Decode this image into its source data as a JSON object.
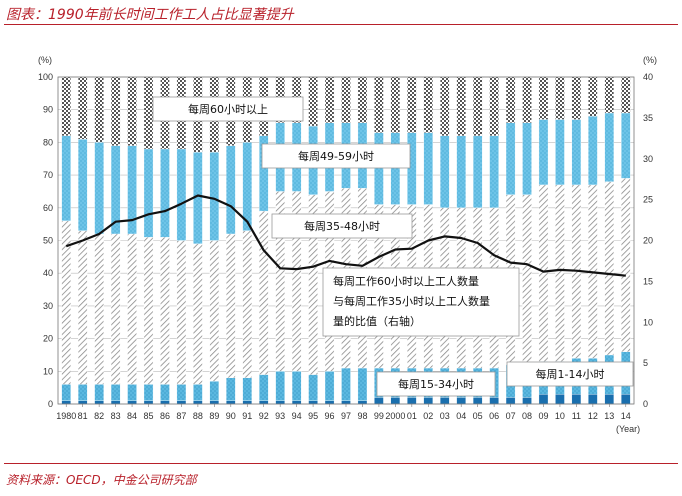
{
  "header": {
    "title": "图表：1990年前长时间工作工人占比显著提升"
  },
  "footer": {
    "source": "资料来源：OECD，中金公司研究部"
  },
  "chart_data": {
    "type": "bar",
    "stacked": true,
    "x_label_unit": "(Year)",
    "y_left_unit": "(%)",
    "y_right_unit": "(%)",
    "y_left_range": [
      0,
      100
    ],
    "y_right_range": [
      0,
      40
    ],
    "y_left_ticks": [
      0,
      10,
      20,
      30,
      40,
      50,
      60,
      70,
      80,
      90,
      100
    ],
    "y_right_ticks": [
      0,
      5,
      10,
      15,
      20,
      25,
      30,
      35,
      40
    ],
    "grid": "horizontal",
    "categories": [
      "1980",
      "81",
      "82",
      "83",
      "84",
      "85",
      "86",
      "87",
      "88",
      "89",
      "90",
      "91",
      "92",
      "93",
      "94",
      "95",
      "96",
      "97",
      "98",
      "99",
      "2000",
      "01",
      "02",
      "03",
      "04",
      "05",
      "06",
      "07",
      "08",
      "09",
      "10",
      "11",
      "12",
      "13",
      "14"
    ],
    "series": [
      {
        "name": "每周1-14小时",
        "color": "#1a6fae",
        "values": [
          1,
          1,
          1,
          1,
          1,
          1,
          1,
          1,
          1,
          1,
          1,
          1,
          1,
          1,
          1,
          1,
          1,
          1,
          1,
          2,
          2,
          2,
          2,
          2,
          2,
          2,
          2,
          2,
          2,
          3,
          3,
          3,
          3,
          3,
          3
        ]
      },
      {
        "name": "每周15-34小时",
        "color": "#5bb8e0",
        "values": [
          5,
          5,
          5,
          5,
          5,
          5,
          5,
          5,
          5,
          6,
          7,
          7,
          8,
          9,
          9,
          8,
          9,
          10,
          10,
          9,
          9,
          9,
          9,
          9,
          9,
          9,
          9,
          10,
          10,
          10,
          10,
          11,
          11,
          12,
          13
        ]
      },
      {
        "name": "每周35-48小时",
        "color": "#c8c8c8",
        "values": [
          50,
          47,
          46,
          46,
          46,
          45,
          45,
          44,
          43,
          43,
          44,
          45,
          50,
          55,
          55,
          55,
          55,
          55,
          55,
          50,
          50,
          50,
          50,
          49,
          49,
          49,
          49,
          52,
          52,
          54,
          54,
          53,
          53,
          53,
          53
        ]
      },
      {
        "name": "每周49-59小时",
        "color": "#6ec4e8",
        "values": [
          26,
          28,
          28,
          27,
          27,
          27,
          27,
          28,
          28,
          27,
          27,
          27,
          23,
          21,
          21,
          21,
          21,
          20,
          20,
          22,
          22,
          22,
          22,
          22,
          22,
          22,
          22,
          22,
          22,
          20,
          20,
          20,
          21,
          21,
          20
        ]
      },
      {
        "name": "每周60小时以上",
        "color": "#7a7a7a",
        "values": [
          18,
          19,
          20,
          21,
          21,
          22,
          22,
          22,
          23,
          23,
          21,
          20,
          18,
          14,
          14,
          15,
          14,
          14,
          14,
          17,
          17,
          17,
          17,
          18,
          18,
          18,
          18,
          14,
          14,
          13,
          13,
          13,
          12,
          11,
          11
        ]
      }
    ],
    "line_series": {
      "name": "每周工作60小时以上工人数量与每周工作35小时以上工人数量的比值（右轴）",
      "axis": "right",
      "color": "#111111",
      "values": [
        19.3,
        20.0,
        20.8,
        22.3,
        22.5,
        23.2,
        23.6,
        24.5,
        25.5,
        25.1,
        24.2,
        22.3,
        18.8,
        16.6,
        16.5,
        16.8,
        17.5,
        17.1,
        16.9,
        18.0,
        18.9,
        19.0,
        20.0,
        20.5,
        20.3,
        19.7,
        18.2,
        17.3,
        17.1,
        16.2,
        16.4,
        16.3,
        16.1,
        15.9,
        15.7
      ]
    },
    "annotations": [
      {
        "text": "每周60小时以上",
        "target": "每周60小时以上"
      },
      {
        "text": "每周49-59小时",
        "target": "每周49-59小时"
      },
      {
        "text": "每周35-48小时",
        "target": "每周35-48小时"
      },
      {
        "text": "每周工作60小时以上工人数量与每周工作35小时以上工人数量的比值（右轴）",
        "target": "line"
      },
      {
        "text": "每周15-34小时",
        "target": "每周15-34小时"
      },
      {
        "text": "每周1-14小时",
        "target": "每周1-14小时"
      }
    ],
    "annotation_lines": [
      [
        "每周工作60小时以上工人数量",
        "与每周工作35小时以上工人数量",
        "量的比值（右轴）"
      ]
    ]
  }
}
